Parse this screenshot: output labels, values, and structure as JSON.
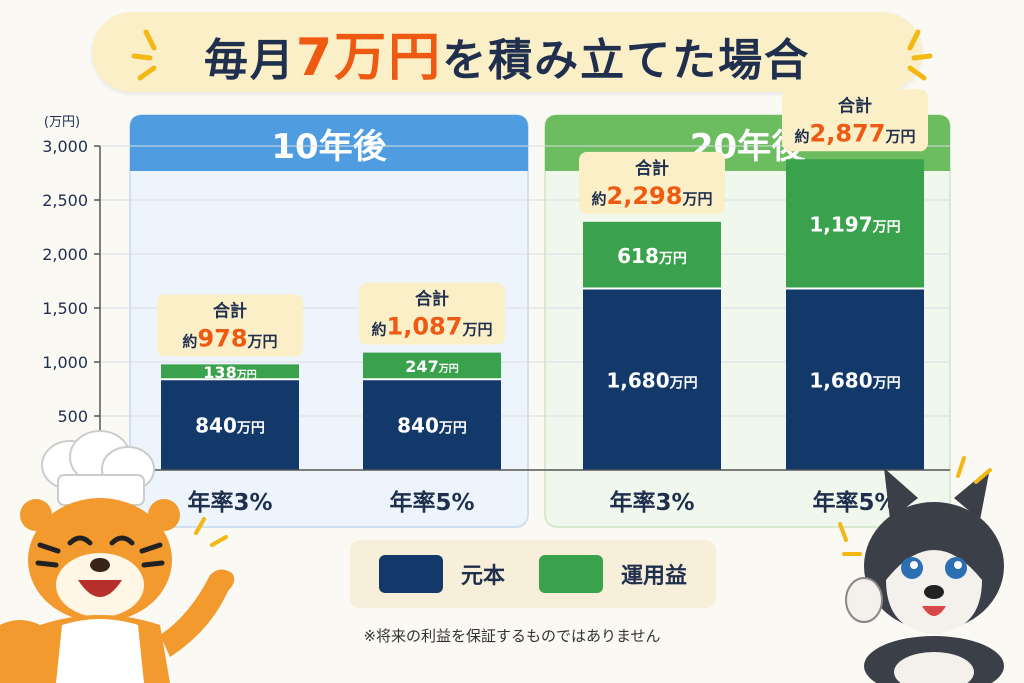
{
  "title": {
    "prefix": "毎月",
    "amount": "7万円",
    "suffix": "を積み立てた場合"
  },
  "colors": {
    "principal": "#13386a",
    "gain": "#3aa14c",
    "panel10": "#4f9de0",
    "panel20": "#6cbd5f",
    "accent": "#ee5a12"
  },
  "chart_data": {
    "type": "bar",
    "stacked": true,
    "yunit": "(万円)",
    "ylim": [
      0,
      3000
    ],
    "yticks": [
      500,
      1000,
      1500,
      2000,
      2500,
      3000
    ],
    "ytick_labels": [
      "500",
      "1,000",
      "1,500",
      "2,000",
      "2,500",
      "3,000"
    ],
    "panels": [
      {
        "title": "10年後",
        "bars": [
          {
            "category": "年率3%",
            "principal": 840,
            "gain": 138,
            "principal_label": "840",
            "gain_label": "138",
            "total_label": "978",
            "label_total_prefix": "約",
            "label_total_unit": "万円",
            "label_total_title": "合計"
          },
          {
            "category": "年率5%",
            "principal": 840,
            "gain": 247,
            "principal_label": "840",
            "gain_label": "247",
            "total_label": "1,087",
            "label_total_prefix": "約",
            "label_total_unit": "万円",
            "label_total_title": "合計"
          }
        ]
      },
      {
        "title": "20年後",
        "bars": [
          {
            "category": "年率3%",
            "principal": 1680,
            "gain": 618,
            "principal_label": "1,680",
            "gain_label": "618",
            "total_label": "2,298",
            "label_total_prefix": "約",
            "label_total_unit": "万円",
            "label_total_title": "合計"
          },
          {
            "category": "年率5%",
            "principal": 1680,
            "gain": 1197,
            "principal_label": "1,680",
            "gain_label": "1,197",
            "total_label": "2,877",
            "label_total_prefix": "約",
            "label_total_unit": "万円",
            "label_total_title": "合計"
          }
        ]
      }
    ],
    "value_unit": "万円",
    "legend": [
      {
        "name": "元本",
        "key": "principal"
      },
      {
        "name": "運用益",
        "key": "gain"
      }
    ]
  },
  "note": "※将来の利益を保証するものではありません",
  "mascots": {
    "left": "tiger-chef",
    "right": "husky-puppy"
  }
}
